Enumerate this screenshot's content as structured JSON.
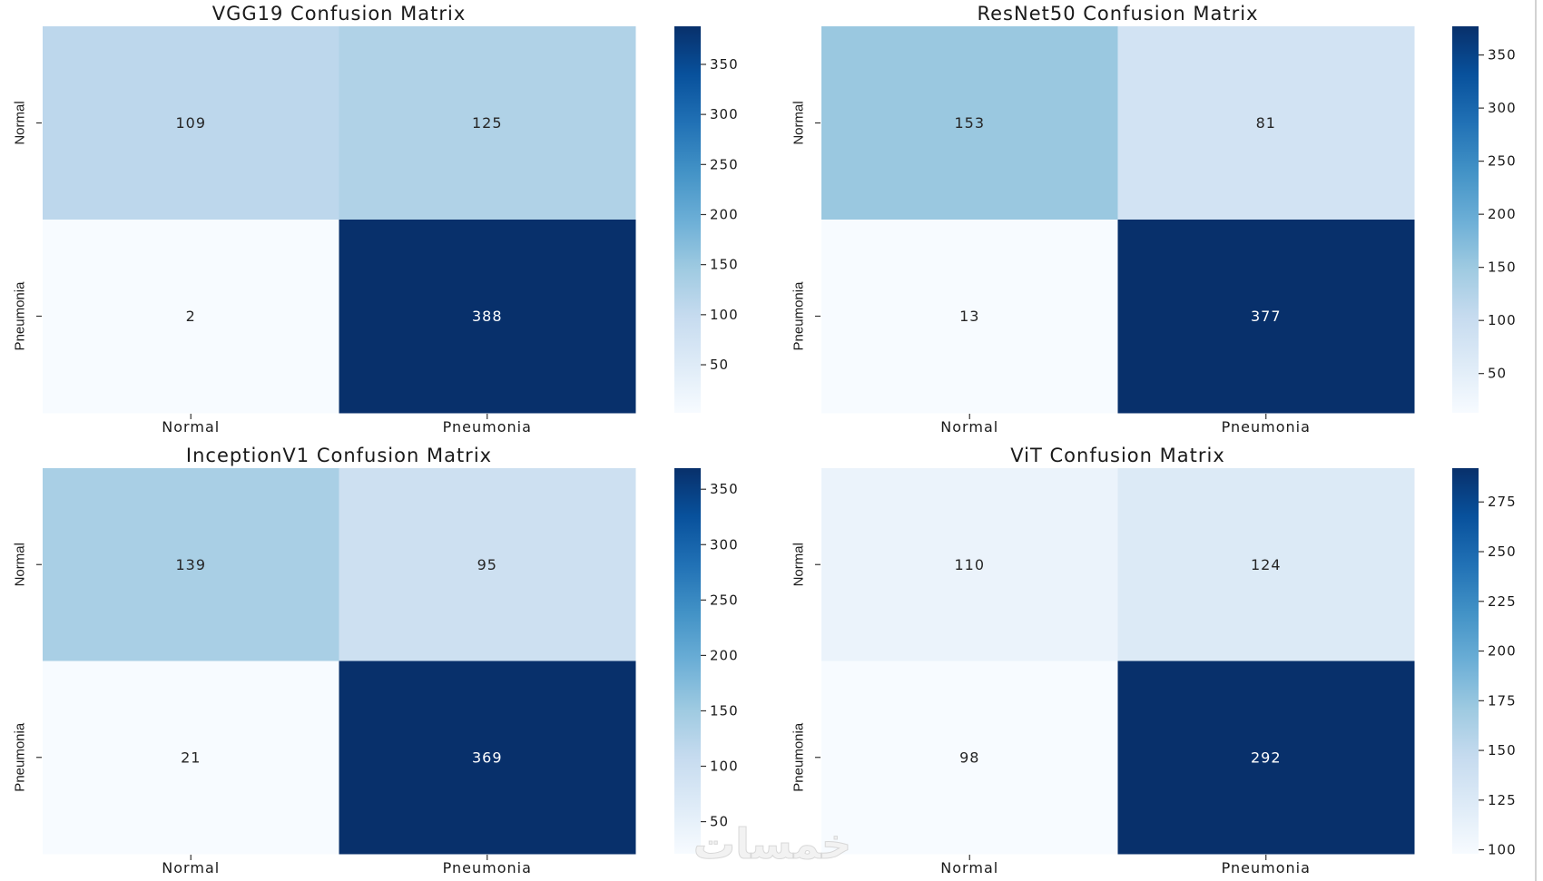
{
  "figure": {
    "watermark": "خمسات"
  },
  "palette": {
    "colormap": "Blues",
    "stops": [
      "#f7fbff",
      "#deebf7",
      "#c6dbef",
      "#9ecae1",
      "#6baed6",
      "#4292c6",
      "#2171b5",
      "#08519c",
      "#08306b"
    ],
    "text_dark": "#262626",
    "text_light": "#ffffff"
  },
  "chart_data": [
    {
      "type": "heatmap",
      "title": "VGG19 Confusion Matrix",
      "x_categories": [
        "Normal",
        "Pneumonia"
      ],
      "y_categories": [
        "Normal",
        "Pneumonia"
      ],
      "values": [
        [
          109,
          125
        ],
        [
          2,
          388
        ]
      ],
      "colorbar": {
        "min": 2,
        "max": 388,
        "ticks": [
          50,
          100,
          150,
          200,
          250,
          300,
          350
        ]
      }
    },
    {
      "type": "heatmap",
      "title": "ResNet50 Confusion Matrix",
      "x_categories": [
        "Normal",
        "Pneumonia"
      ],
      "y_categories": [
        "Normal",
        "Pneumonia"
      ],
      "values": [
        [
          153,
          81
        ],
        [
          13,
          377
        ]
      ],
      "colorbar": {
        "min": 13,
        "max": 377,
        "ticks": [
          50,
          100,
          150,
          200,
          250,
          300,
          350
        ]
      }
    },
    {
      "type": "heatmap",
      "title": "InceptionV1 Confusion Matrix",
      "x_categories": [
        "Normal",
        "Pneumonia"
      ],
      "y_categories": [
        "Normal",
        "Pneumonia"
      ],
      "values": [
        [
          139,
          95
        ],
        [
          21,
          369
        ]
      ],
      "colorbar": {
        "min": 21,
        "max": 369,
        "ticks": [
          50,
          100,
          150,
          200,
          250,
          300,
          350
        ]
      }
    },
    {
      "type": "heatmap",
      "title": "ViT Confusion Matrix",
      "x_categories": [
        "Normal",
        "Pneumonia"
      ],
      "y_categories": [
        "Normal",
        "Pneumonia"
      ],
      "values": [
        [
          110,
          124
        ],
        [
          98,
          292
        ]
      ],
      "colorbar": {
        "min": 98,
        "max": 292,
        "ticks": [
          100,
          125,
          150,
          175,
          200,
          225,
          250,
          275
        ]
      }
    }
  ]
}
